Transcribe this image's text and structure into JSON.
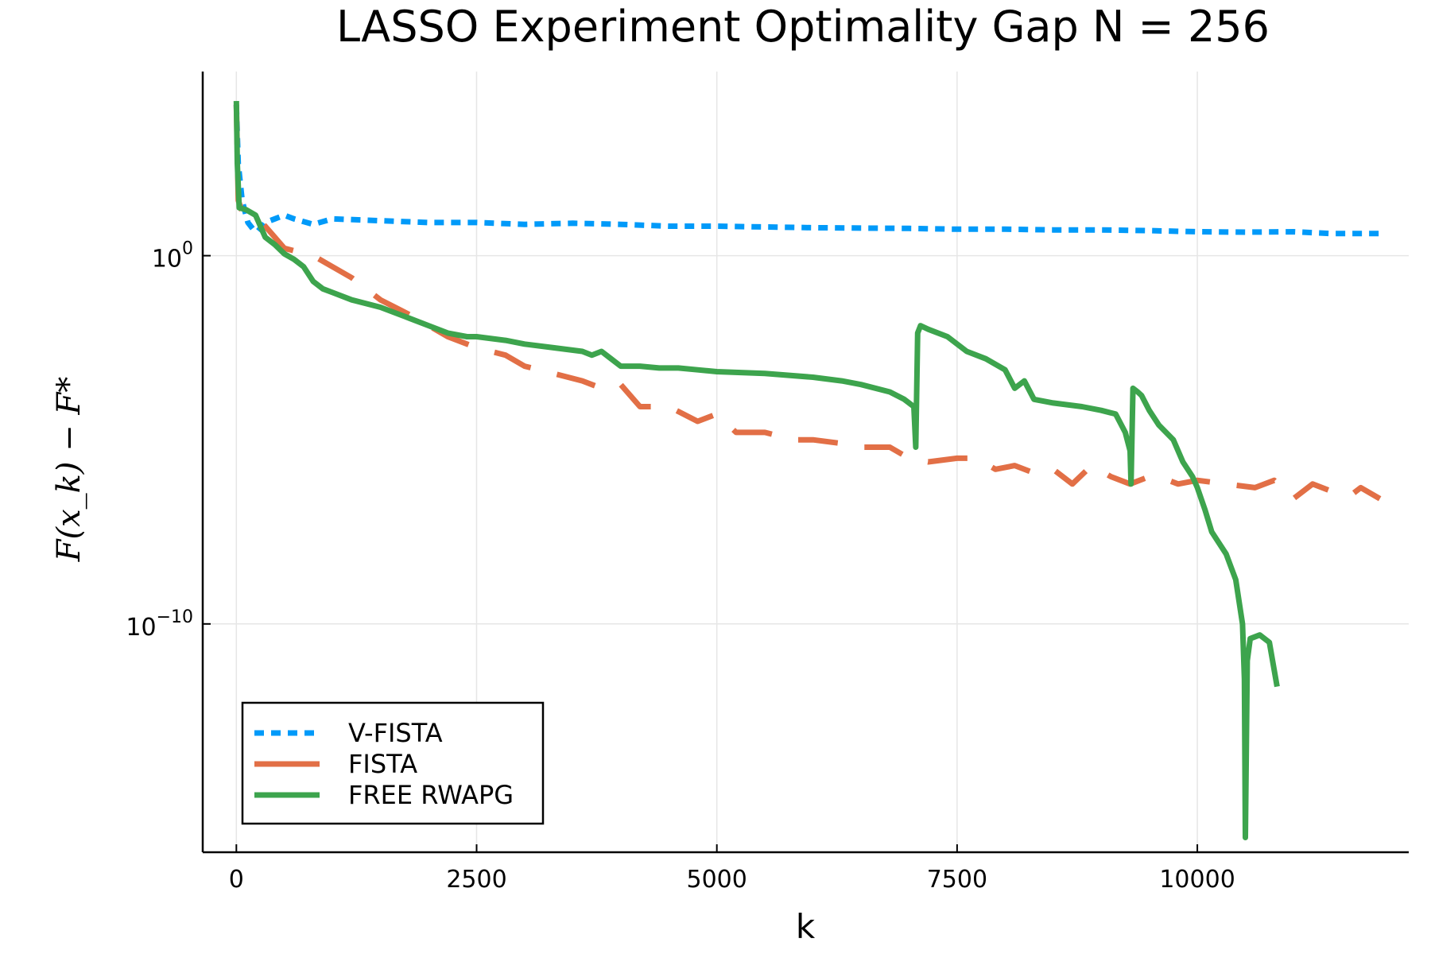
{
  "chart_data": {
    "type": "line",
    "title": "LASSO Experiment Optimality Gap N = 256",
    "xlabel": "k",
    "ylabel": "F(x_k) − F*",
    "y_scale": "log",
    "xlim": [
      -350,
      12200
    ],
    "ylim_exp": [
      -16.2,
      5.0
    ],
    "x_ticks": [
      0,
      2500,
      5000,
      7500,
      10000
    ],
    "x_tick_labels": [
      "0",
      "2500",
      "5000",
      "7500",
      "10000"
    ],
    "y_ticks_exp": [
      0,
      -10
    ],
    "y_tick_base": "10",
    "y_tick_exps": [
      "0",
      "−10"
    ],
    "grid": true,
    "legend_position": "bottom-left",
    "colors": {
      "V-FISTA": "#009af9",
      "FISTA": "#e26f46",
      "FREE RWAPG": "#3da44d"
    },
    "series": [
      {
        "name": "V-FISTA",
        "style": "dotted",
        "color": "#009af9",
        "x": [
          0,
          20,
          60,
          120,
          180,
          220,
          300,
          400,
          500,
          600,
          800,
          1000,
          1500,
          2000,
          2500,
          3000,
          3500,
          4000,
          4500,
          5000,
          5500,
          6000,
          6500,
          7000,
          7500,
          8000,
          8500,
          9000,
          9500,
          10000,
          10500,
          11000,
          11400,
          11900
        ],
        "y_exp": [
          4.1,
          2.5,
          1.5,
          0.9,
          0.7,
          0.65,
          0.9,
          1.0,
          1.1,
          1.0,
          0.85,
          1.0,
          0.95,
          0.9,
          0.9,
          0.85,
          0.88,
          0.85,
          0.8,
          0.8,
          0.78,
          0.76,
          0.75,
          0.74,
          0.72,
          0.72,
          0.7,
          0.7,
          0.68,
          0.65,
          0.64,
          0.65,
          0.6,
          0.6
        ]
      },
      {
        "name": "FISTA",
        "style": "dashed",
        "color": "#e26f46",
        "x": [
          0,
          20,
          60,
          150,
          300,
          400,
          500,
          800,
          1000,
          1200,
          1500,
          1800,
          2000,
          2200,
          2500,
          2800,
          3000,
          3300,
          3600,
          3800,
          4000,
          4200,
          4500,
          4800,
          5000,
          5200,
          5500,
          5800,
          6000,
          6300,
          6500,
          6800,
          7000,
          7200,
          7500,
          7700,
          7900,
          8100,
          8300,
          8500,
          8700,
          8900,
          9100,
          9300,
          9500,
          9700,
          9800,
          10000,
          10300,
          10600,
          10800,
          11000,
          11200,
          11400,
          11600,
          11700,
          11900
        ],
        "y_exp": [
          4.1,
          1.5,
          1.2,
          1.1,
          0.8,
          0.5,
          0.2,
          0.0,
          -0.3,
          -0.6,
          -1.2,
          -1.6,
          -1.9,
          -2.2,
          -2.5,
          -2.7,
          -3.0,
          -3.2,
          -3.4,
          -3.6,
          -3.5,
          -4.1,
          -4.1,
          -4.5,
          -4.3,
          -4.8,
          -4.8,
          -5.0,
          -5.0,
          -5.1,
          -5.2,
          -5.2,
          -5.5,
          -5.6,
          -5.5,
          -5.5,
          -5.8,
          -5.7,
          -5.9,
          -5.8,
          -6.2,
          -5.7,
          -6.0,
          -6.2,
          -6.0,
          -6.1,
          -6.2,
          -6.1,
          -6.2,
          -6.3,
          -6.1,
          -6.6,
          -6.2,
          -6.4,
          -6.5,
          -6.3,
          -6.6
        ]
      },
      {
        "name": "FREE RWAPG",
        "style": "solid",
        "color": "#3da44d",
        "x": [
          0,
          10,
          30,
          100,
          200,
          300,
          400,
          500,
          600,
          700,
          800,
          900,
          1000,
          1200,
          1500,
          1800,
          2000,
          2200,
          2400,
          2500,
          2800,
          3000,
          3300,
          3600,
          3700,
          3800,
          3900,
          4000,
          4200,
          4400,
          4600,
          4800,
          5000,
          5500,
          6000,
          6300,
          6500,
          6800,
          6950,
          7050,
          7070,
          7090,
          7120,
          7200,
          7400,
          7600,
          7800,
          8000,
          8100,
          8200,
          8300,
          8500,
          8800,
          9000,
          9150,
          9250,
          9300,
          9310,
          9330,
          9380,
          9420,
          9500,
          9600,
          9750,
          9850,
          9950,
          10000,
          10080,
          10150,
          10300,
          10400,
          10470,
          10490,
          10500,
          10520,
          10550,
          10650,
          10750,
          10830
        ],
        "y_exp": [
          4.2,
          2.5,
          1.3,
          1.25,
          1.1,
          0.5,
          0.3,
          0.05,
          -0.1,
          -0.3,
          -0.7,
          -0.9,
          -1.0,
          -1.2,
          -1.4,
          -1.7,
          -1.9,
          -2.1,
          -2.2,
          -2.2,
          -2.3,
          -2.4,
          -2.5,
          -2.6,
          -2.7,
          -2.6,
          -2.8,
          -3.0,
          -3.0,
          -3.05,
          -3.05,
          -3.1,
          -3.15,
          -3.2,
          -3.3,
          -3.4,
          -3.5,
          -3.7,
          -3.9,
          -4.1,
          -5.2,
          -2.1,
          -1.9,
          -2.0,
          -2.2,
          -2.6,
          -2.8,
          -3.1,
          -3.6,
          -3.4,
          -3.9,
          -4.0,
          -4.1,
          -4.2,
          -4.3,
          -4.8,
          -5.3,
          -6.2,
          -3.6,
          -3.7,
          -3.8,
          -4.2,
          -4.6,
          -5.0,
          -5.6,
          -6.0,
          -6.3,
          -6.9,
          -7.5,
          -8.1,
          -8.8,
          -10.0,
          -11.5,
          -15.8,
          -11.0,
          -10.4,
          -10.3,
          -10.5,
          -11.7
        ]
      }
    ]
  }
}
